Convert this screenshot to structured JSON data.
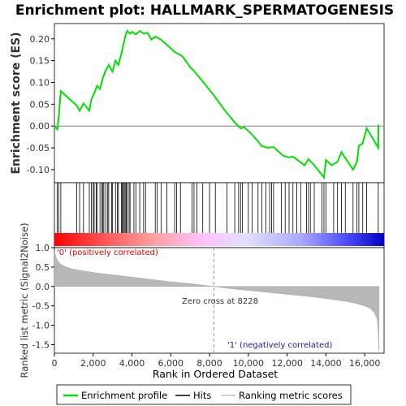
{
  "chart_data": {
    "title": "Enrichment plot: HALLMARK_SPERMATOGENESIS",
    "top_panel": {
      "type": "line",
      "ylabel": "Enrichment score (ES)",
      "ylim": [
        -0.13,
        0.235
      ],
      "yticks": [
        "-0.10",
        "-0.05",
        "0.00",
        "0.05",
        "0.10",
        "0.15",
        "0.20"
      ],
      "ytick_values": [
        -0.1,
        -0.05,
        0.0,
        0.05,
        0.1,
        0.15,
        0.2
      ],
      "series_color": "#00e000",
      "points": [
        [
          0,
          0.0
        ],
        [
          150,
          -0.008
        ],
        [
          220,
          0.02
        ],
        [
          330,
          0.08
        ],
        [
          1150,
          0.047
        ],
        [
          1300,
          0.035
        ],
        [
          1500,
          0.052
        ],
        [
          1800,
          0.035
        ],
        [
          1900,
          0.06
        ],
        [
          2050,
          0.075
        ],
        [
          2200,
          0.092
        ],
        [
          2350,
          0.085
        ],
        [
          2500,
          0.11
        ],
        [
          2650,
          0.128
        ],
        [
          2800,
          0.14
        ],
        [
          3000,
          0.125
        ],
        [
          3150,
          0.15
        ],
        [
          3300,
          0.14
        ],
        [
          3450,
          0.165
        ],
        [
          3550,
          0.185
        ],
        [
          3650,
          0.205
        ],
        [
          3750,
          0.218
        ],
        [
          3900,
          0.212
        ],
        [
          4000,
          0.216
        ],
        [
          4200,
          0.21
        ],
        [
          4400,
          0.218
        ],
        [
          4600,
          0.212
        ],
        [
          4800,
          0.214
        ],
        [
          5000,
          0.198
        ],
        [
          5200,
          0.205
        ],
        [
          5500,
          0.198
        ],
        [
          5800,
          0.186
        ],
        [
          6200,
          0.17
        ],
        [
          6600,
          0.16
        ],
        [
          7000,
          0.135
        ],
        [
          7200,
          0.126
        ],
        [
          7600,
          0.105
        ],
        [
          8228,
          0.07
        ],
        [
          8800,
          0.035
        ],
        [
          9300,
          0.008
        ],
        [
          9600,
          -0.005
        ],
        [
          9800,
          -0.003
        ],
        [
          10200,
          -0.02
        ],
        [
          10700,
          -0.046
        ],
        [
          11000,
          -0.05
        ],
        [
          11300,
          -0.048
        ],
        [
          11500,
          -0.056
        ],
        [
          11800,
          -0.068
        ],
        [
          12100,
          -0.072
        ],
        [
          12300,
          -0.07
        ],
        [
          12600,
          -0.08
        ],
        [
          12900,
          -0.09
        ],
        [
          13100,
          -0.076
        ],
        [
          13400,
          -0.09
        ],
        [
          13900,
          -0.118
        ],
        [
          14000,
          -0.078
        ],
        [
          14300,
          -0.09
        ],
        [
          14600,
          -0.082
        ],
        [
          14800,
          -0.06
        ],
        [
          15100,
          -0.08
        ],
        [
          15400,
          -0.1
        ],
        [
          15600,
          -0.082
        ],
        [
          15700,
          -0.045
        ],
        [
          15900,
          -0.04
        ],
        [
          16100,
          -0.005
        ],
        [
          16300,
          -0.02
        ],
        [
          16700,
          -0.05
        ],
        [
          16710,
          0.003
        ]
      ]
    },
    "hits_panel": {
      "hit_positions": [
        150,
        220,
        330,
        1150,
        1300,
        1500,
        1800,
        1900,
        2000,
        2050,
        2150,
        2200,
        2350,
        2450,
        2500,
        2550,
        2650,
        2750,
        2800,
        2950,
        3000,
        3150,
        3250,
        3300,
        3450,
        3500,
        3550,
        3600,
        3650,
        3700,
        3750,
        3850,
        3900,
        4100,
        4200,
        4400,
        4600,
        4700,
        5200,
        5300,
        5500,
        5800,
        6200,
        6300,
        6500,
        7100,
        7200,
        7350,
        7650,
        8000,
        8300,
        8900,
        9300,
        9500,
        9600,
        9700,
        10000,
        10200,
        10500,
        10700,
        10900,
        11100,
        11200,
        11300,
        11700,
        11900,
        12100,
        12300,
        12500,
        12700,
        13000,
        13100,
        13200,
        13400,
        13800,
        13900,
        14000,
        14400,
        14600,
        14800,
        15000,
        15400,
        15600,
        15700,
        15900,
        16100,
        16700
      ],
      "gradient_colors": [
        "#ff0000",
        "#ff6060",
        "#ffb0b0",
        "#ffc8ff",
        "#e0e0ff",
        "#b0b0ff",
        "#6060ff",
        "#0000cc"
      ]
    },
    "bottom_panel": {
      "type": "area",
      "ylabel": "Ranked list metric (Signal2Noise)",
      "xlabel": "Rank in Ordered Dataset",
      "ylim": [
        -1.72,
        1.0
      ],
      "yticks": [
        "-1.5",
        "-1.0",
        "-0.5",
        "0.0",
        "0.5",
        "1.0"
      ],
      "ytick_values": [
        -1.5,
        -1.0,
        -0.5,
        0.0,
        0.5,
        1.0
      ],
      "xlim": [
        0,
        17000
      ],
      "xticks": [
        "0",
        "2,000",
        "4,000",
        "6,000",
        "8,000",
        "10,000",
        "12,000",
        "14,000",
        "16,000"
      ],
      "xtick_values": [
        0,
        2000,
        4000,
        6000,
        8000,
        10000,
        12000,
        14000,
        16000
      ],
      "points": [
        [
          0,
          0.92
        ],
        [
          100,
          0.72
        ],
        [
          300,
          0.58
        ],
        [
          600,
          0.5
        ],
        [
          1000,
          0.44
        ],
        [
          2000,
          0.36
        ],
        [
          3000,
          0.3
        ],
        [
          4000,
          0.24
        ],
        [
          5000,
          0.18
        ],
        [
          6000,
          0.12
        ],
        [
          7000,
          0.07
        ],
        [
          8228,
          0.0
        ],
        [
          9000,
          -0.05
        ],
        [
          10000,
          -0.1
        ],
        [
          11000,
          -0.15
        ],
        [
          12000,
          -0.2
        ],
        [
          13000,
          -0.25
        ],
        [
          14000,
          -0.31
        ],
        [
          15000,
          -0.38
        ],
        [
          15500,
          -0.43
        ],
        [
          16000,
          -0.5
        ],
        [
          16300,
          -0.57
        ],
        [
          16500,
          -0.68
        ],
        [
          16650,
          -0.85
        ],
        [
          16700,
          -1.2
        ],
        [
          16730,
          -1.65
        ]
      ],
      "zero_cross": 8228,
      "annotations": {
        "positive": "'0' (positively correlated)",
        "negative": "'1' (negatively correlated)",
        "zero_cross": "Zero cross at 8228"
      }
    },
    "legend": [
      {
        "label": "Enrichment profile",
        "color": "#00e000"
      },
      {
        "label": "Hits",
        "color": "#000000"
      },
      {
        "label": "Ranking metric scores",
        "color": "#c0c0c0"
      }
    ]
  }
}
